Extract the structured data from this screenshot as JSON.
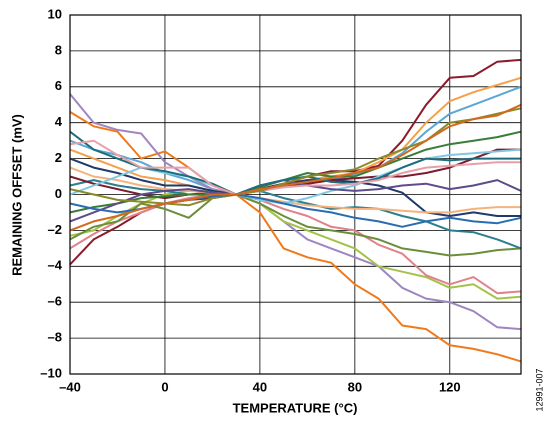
{
  "chart_data": {
    "type": "line",
    "xlabel": "TEMPERATURE (°C)",
    "ylabel": "REMAINING OFFSET (mV)",
    "figure_id": "12991-007",
    "x": [
      -40,
      -30,
      -20,
      -10,
      0,
      10,
      20,
      30,
      40,
      50,
      60,
      70,
      80,
      90,
      100,
      110,
      120,
      130,
      140,
      150
    ],
    "xlim": [
      -40,
      150
    ],
    "xticks": [
      {
        "value": -40,
        "label": "–40"
      },
      0,
      40,
      80,
      120
    ],
    "ylim": [
      -10,
      10
    ],
    "yticks": [
      {
        "value": -10,
        "label": "–10"
      },
      {
        "value": -8,
        "label": "–8"
      },
      {
        "value": -6,
        "label": "–6"
      },
      {
        "value": -4,
        "label": "–4"
      },
      {
        "value": -2,
        "label": "–2"
      },
      0,
      2,
      4,
      6,
      8,
      10
    ],
    "grid": true,
    "series": [
      {
        "color": "#8b1a2b",
        "values": [
          -3.9,
          -2.5,
          -1.8,
          -1,
          -0.5,
          -0.3,
          -0.2,
          0,
          0.3,
          0.6,
          1,
          1.3,
          1.3,
          1.6,
          3,
          5,
          6.5,
          6.6,
          7.4,
          7.5
        ]
      },
      {
        "color": "#f5a04a",
        "values": [
          2.5,
          2,
          1.5,
          1,
          0.8,
          0.5,
          0.2,
          0,
          0.3,
          0.5,
          0.8,
          1,
          1.2,
          1.8,
          2.5,
          4,
          5.2,
          5.7,
          6.1,
          6.5
        ]
      },
      {
        "color": "#5aa7d6",
        "values": [
          3,
          2.5,
          2.2,
          1.8,
          1.2,
          0.8,
          0.3,
          0,
          0.2,
          0.4,
          0.6,
          0.8,
          1.1,
          1.5,
          2.3,
          3.5,
          4.5,
          5,
          5.5,
          6
        ]
      },
      {
        "color": "#f07a1a",
        "values": [
          4.6,
          3.8,
          3.5,
          2,
          2.4,
          1.5,
          0.5,
          0,
          -1,
          -3,
          -3.5,
          -3.8,
          -5,
          -5.8,
          -7.3,
          -7.5,
          -8.4,
          -8.6,
          -8.9,
          -9.3
        ]
      },
      {
        "color": "#9e86c0",
        "values": [
          5.6,
          4,
          3.6,
          3.4,
          1.8,
          1,
          0.3,
          0,
          -0.5,
          -1.5,
          -2.5,
          -3,
          -3.5,
          -4,
          -5.2,
          -5.8,
          -6,
          -6.5,
          -7.4,
          -7.5
        ]
      },
      {
        "color": "#a4c24a",
        "values": [
          -2.3,
          -2,
          -1.2,
          -0.5,
          0,
          0.2,
          0.2,
          0,
          -0.5,
          -1.5,
          -2,
          -2.5,
          -3,
          -4,
          -4.3,
          -4.6,
          -5.2,
          -5,
          -5.8,
          -5.7
        ]
      },
      {
        "color": "#e0828a",
        "values": [
          -3,
          -2.2,
          -1.5,
          -1,
          -0.5,
          -0.2,
          0,
          0,
          -0.3,
          -0.8,
          -1.2,
          -1.8,
          -2,
          -2.8,
          -3.3,
          -4.5,
          -5,
          -4.6,
          -5.5,
          -5.4
        ]
      },
      {
        "color": "#6b8e3a",
        "values": [
          -2.5,
          -1.8,
          -1.5,
          -0.5,
          -0.8,
          -1.3,
          -0.2,
          0,
          -0.5,
          -1.2,
          -1.8,
          -2,
          -2.2,
          -2.5,
          -3,
          -3.2,
          -3.4,
          -3.3,
          -3.1,
          -3
        ]
      },
      {
        "color": "#2a7f8f",
        "values": [
          0.5,
          0.8,
          0.5,
          0.3,
          0.2,
          0,
          0,
          0,
          0.2,
          -0.2,
          -0.5,
          -0.8,
          -0.7,
          -0.8,
          -1.2,
          -1.5,
          -2,
          -2.1,
          -2.5,
          -3
        ]
      },
      {
        "color": "#1f3a6b",
        "values": [
          2,
          1.5,
          1.2,
          0.8,
          0.5,
          0.5,
          0.2,
          0,
          0.3,
          0.6,
          0.8,
          0.8,
          0.7,
          0.5,
          0.1,
          -1,
          -1.2,
          -1,
          -1.2,
          -1.2
        ]
      },
      {
        "color": "#7b1c2e",
        "values": [
          1,
          0.6,
          0.3,
          0,
          -0.2,
          0,
          0.1,
          0,
          0.3,
          0.5,
          0.6,
          0.8,
          0.9,
          1,
          1,
          1.2,
          1.5,
          2,
          2.5,
          2.5
        ]
      },
      {
        "color": "#3a7d3a",
        "values": [
          -1,
          -0.7,
          -0.5,
          -0.2,
          -0.1,
          0,
          0,
          0,
          0.4,
          0.8,
          1.2,
          1,
          1,
          1.5,
          2,
          2.5,
          2.8,
          3,
          3.2,
          3.5
        ]
      },
      {
        "color": "#f5b27d",
        "values": [
          1.5,
          1,
          0.8,
          0.5,
          0.3,
          0.2,
          0.1,
          0,
          -0.2,
          -0.4,
          -0.6,
          -0.7,
          -0.8,
          -0.8,
          -0.9,
          -1,
          -1,
          -0.8,
          -0.7,
          -0.7
        ]
      },
      {
        "color": "#7ec8e3",
        "values": [
          0,
          0.5,
          1,
          1.5,
          1.2,
          1,
          0.5,
          0,
          -0.3,
          -0.5,
          -0.2,
          0.2,
          0.5,
          1,
          1.5,
          2,
          2.2,
          2.3,
          2.4,
          2.5
        ]
      },
      {
        "color": "#5e4b8b",
        "values": [
          -1.5,
          -1,
          -0.5,
          0,
          0.2,
          0.3,
          0.1,
          0,
          0.5,
          0.8,
          0.5,
          0.3,
          0.2,
          0.3,
          0.5,
          0.6,
          0.3,
          0.5,
          0.8,
          0.2
        ]
      },
      {
        "color": "#1c6e7d",
        "values": [
          3.5,
          2.5,
          2,
          1.5,
          1.3,
          1,
          0.6,
          0,
          0.5,
          0.8,
          1,
          0.7,
          0.6,
          0.9,
          1.5,
          2,
          1.9,
          2,
          2,
          2
        ]
      },
      {
        "color": "#e8a0a8",
        "values": [
          2.8,
          3,
          2.2,
          1.5,
          1.5,
          1.5,
          0.5,
          0,
          0.2,
          0.4,
          0.5,
          0.5,
          0.6,
          0.8,
          1.2,
          1.5,
          1.6,
          1.7,
          1.8,
          1.8
        ]
      },
      {
        "color": "#8a8a2a",
        "values": [
          0.3,
          0,
          -0.3,
          -0.4,
          -0.5,
          -0.6,
          -0.2,
          0,
          0.2,
          0.6,
          1,
          1.2,
          1.4,
          2,
          2.5,
          3,
          4,
          4.2,
          4.5,
          4.8
        ]
      },
      {
        "color": "#2b6cb0",
        "values": [
          -0.5,
          -0.8,
          -1,
          -0.8,
          -0.5,
          -0.3,
          -0.1,
          0,
          -0.2,
          -0.5,
          -0.8,
          -1,
          -1.3,
          -1.5,
          -1.8,
          -1.5,
          -1.3,
          -1.5,
          -1.6,
          -1.3
        ]
      },
      {
        "color": "#d2691e",
        "values": [
          -2,
          -1.5,
          -1.2,
          -0.8,
          -0.5,
          -0.3,
          0,
          0,
          0.3,
          0.5,
          0.7,
          0.9,
          1.2,
          1.5,
          2.2,
          3,
          3.8,
          4.2,
          4.4,
          5
        ]
      }
    ]
  }
}
